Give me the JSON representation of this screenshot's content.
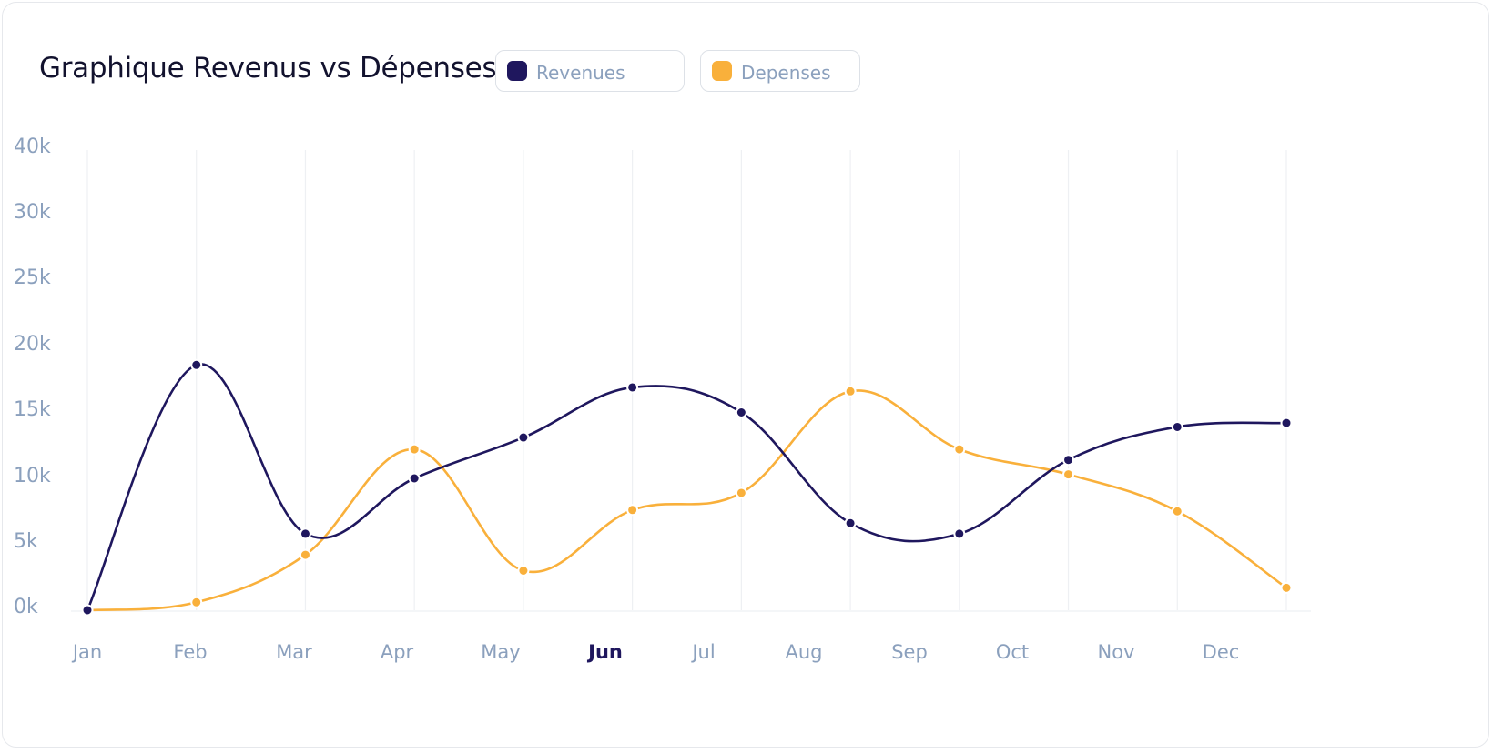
{
  "header": {
    "title": "Graphique Revenus vs Dépenses"
  },
  "legend": [
    {
      "label": "Revenues",
      "color": "#1f175e"
    },
    {
      "label": "Depenses",
      "color": "#f9b03b"
    }
  ],
  "chart_data": {
    "type": "line",
    "title": "Graphique Revenus vs Dépenses",
    "xlabel": "",
    "ylabel": "",
    "categories": [
      "Jan",
      "Feb",
      "Mar",
      "Apr",
      "May",
      "Jun",
      "Jul",
      "Aug",
      "Sep",
      "Oct",
      "Nov",
      "Dec"
    ],
    "highlighted_category": "Jun",
    "yticks": [
      "0k",
      "5k",
      "10k",
      "15k",
      "20k",
      "25k",
      "30k",
      "40k"
    ],
    "grid": "vertical",
    "legend_position": "top",
    "series": [
      {
        "name": "Revenues",
        "color": "#1f175e",
        "values": [
          0,
          18.6,
          5.8,
          10,
          13.1,
          16.9,
          15,
          6.6,
          5.8,
          11.4,
          13.9,
          14.2
        ]
      },
      {
        "name": "Depenses",
        "color": "#f9b03b",
        "values": [
          0,
          0.6,
          4.2,
          12.2,
          3,
          7.6,
          8.9,
          16.6,
          12.2,
          10.3,
          7.5,
          1.7
        ]
      }
    ]
  }
}
